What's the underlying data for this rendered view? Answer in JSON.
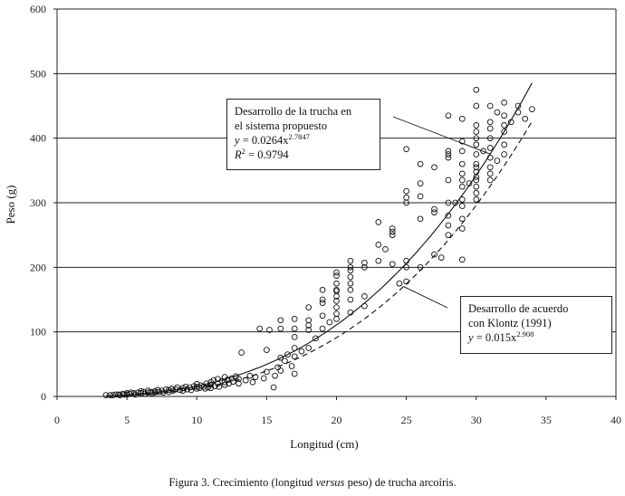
{
  "chart_data": {
    "type": "scatter",
    "xlabel": "Longitud (cm)",
    "ylabel": "Peso (g)",
    "xlim": [
      0,
      40
    ],
    "ylim": [
      0,
      600
    ],
    "xticks": [
      0,
      5,
      10,
      15,
      20,
      25,
      30,
      35,
      40
    ],
    "yticks": [
      0,
      100,
      200,
      300,
      400,
      500,
      600
    ],
    "grid": "horizontal",
    "curves": [
      {
        "id": "fit",
        "style": "solid",
        "a": 0.0264,
        "b": 2.7847,
        "x_range": [
          3.5,
          34
        ],
        "label": [
          "Desarrollo de la trucha en",
          "el sistema propuesto"
        ],
        "equation_y": "y",
        "equation_eq": " = 0.0264x",
        "equation_exp": "2.7847",
        "r2_lhs": "R",
        "r2_exp": "2",
        "r2_rhs": " = 0.9794"
      },
      {
        "id": "klontz",
        "style": "dashed",
        "a": 0.015,
        "b": 2.908,
        "x_range": [
          5,
          34
        ],
        "label": [
          "Desarrollo de acuerdo",
          "con Klontz (1991)"
        ],
        "equation_y": "y",
        "equation_eq": " = 0.015x",
        "equation_exp": "2.908"
      }
    ],
    "points": [
      [
        3.5,
        2
      ],
      [
        3.8,
        2
      ],
      [
        4,
        2
      ],
      [
        4.2,
        3
      ],
      [
        4.4,
        3
      ],
      [
        4.5,
        2
      ],
      [
        4.7,
        4
      ],
      [
        4.8,
        3
      ],
      [
        5,
        3
      ],
      [
        5,
        5
      ],
      [
        5.2,
        4
      ],
      [
        5.3,
        6
      ],
      [
        5.5,
        5
      ],
      [
        5.6,
        3
      ],
      [
        5.8,
        6
      ],
      [
        6,
        5
      ],
      [
        6,
        8
      ],
      [
        6.2,
        7
      ],
      [
        6.3,
        4
      ],
      [
        6.5,
        6
      ],
      [
        6.5,
        9
      ],
      [
        6.7,
        7
      ],
      [
        6.8,
        5
      ],
      [
        7,
        8
      ],
      [
        7,
        6
      ],
      [
        7.2,
        10
      ],
      [
        7.3,
        7
      ],
      [
        7.5,
        9
      ],
      [
        7.6,
        6
      ],
      [
        7.8,
        11
      ],
      [
        8,
        10
      ],
      [
        8,
        7
      ],
      [
        8.2,
        12
      ],
      [
        8.3,
        9
      ],
      [
        8.5,
        11
      ],
      [
        8.6,
        14
      ],
      [
        8.8,
        10
      ],
      [
        9,
        13
      ],
      [
        9,
        9
      ],
      [
        9.2,
        15
      ],
      [
        9.3,
        11
      ],
      [
        9.5,
        14
      ],
      [
        9.6,
        10
      ],
      [
        9.8,
        16
      ],
      [
        10,
        15
      ],
      [
        10,
        12
      ],
      [
        10,
        19
      ],
      [
        10.2,
        13
      ],
      [
        10.3,
        17
      ],
      [
        10.5,
        15
      ],
      [
        10.6,
        12
      ],
      [
        10.7,
        20
      ],
      [
        10.8,
        14
      ],
      [
        11,
        18
      ],
      [
        11,
        22
      ],
      [
        11,
        13
      ],
      [
        11.2,
        25
      ],
      [
        11.3,
        16
      ],
      [
        11.5,
        20
      ],
      [
        11.5,
        27
      ],
      [
        11.6,
        15
      ],
      [
        11.8,
        24
      ],
      [
        12,
        22
      ],
      [
        12,
        30
      ],
      [
        12,
        18
      ],
      [
        12.2,
        26
      ],
      [
        12.3,
        20
      ],
      [
        12.5,
        28
      ],
      [
        12.6,
        23
      ],
      [
        12.8,
        31
      ],
      [
        13,
        20
      ],
      [
        13,
        27
      ],
      [
        13.2,
        68
      ],
      [
        13.5,
        25
      ],
      [
        13.8,
        32
      ],
      [
        14,
        22
      ],
      [
        14.2,
        30
      ],
      [
        14.5,
        105
      ],
      [
        14.8,
        28
      ],
      [
        15,
        72
      ],
      [
        15,
        38
      ],
      [
        15.2,
        103
      ],
      [
        15.5,
        14
      ],
      [
        15.6,
        32
      ],
      [
        15.8,
        45
      ],
      [
        16,
        40
      ],
      [
        16,
        60
      ],
      [
        16,
        105
      ],
      [
        16,
        118
      ],
      [
        16.3,
        55
      ],
      [
        16.5,
        65
      ],
      [
        16.8,
        47
      ],
      [
        17,
        35
      ],
      [
        17,
        62
      ],
      [
        17,
        75
      ],
      [
        17,
        92
      ],
      [
        17,
        105
      ],
      [
        17,
        120
      ],
      [
        17.5,
        70
      ],
      [
        18,
        75
      ],
      [
        18,
        103
      ],
      [
        18,
        110
      ],
      [
        18,
        118
      ],
      [
        18,
        138
      ],
      [
        18.5,
        90
      ],
      [
        19,
        105
      ],
      [
        19,
        125
      ],
      [
        19,
        145
      ],
      [
        19,
        150
      ],
      [
        19,
        165
      ],
      [
        19.5,
        115
      ],
      [
        20,
        120
      ],
      [
        20,
        128
      ],
      [
        20,
        138
      ],
      [
        20,
        148
      ],
      [
        20,
        155
      ],
      [
        20,
        163
      ],
      [
        20,
        175
      ],
      [
        20,
        187
      ],
      [
        20,
        192
      ],
      [
        20,
        165
      ],
      [
        21,
        130
      ],
      [
        21,
        150
      ],
      [
        21,
        165
      ],
      [
        21,
        175
      ],
      [
        21,
        185
      ],
      [
        21,
        195
      ],
      [
        21,
        200
      ],
      [
        21,
        210
      ],
      [
        22,
        155
      ],
      [
        22,
        140
      ],
      [
        22,
        200
      ],
      [
        22,
        207
      ],
      [
        23,
        210
      ],
      [
        23,
        235
      ],
      [
        23,
        270
      ],
      [
        23.5,
        228
      ],
      [
        24,
        205
      ],
      [
        24,
        250
      ],
      [
        24,
        255
      ],
      [
        24,
        260
      ],
      [
        24.5,
        175
      ],
      [
        25,
        178
      ],
      [
        25,
        200
      ],
      [
        25,
        210
      ],
      [
        25,
        300
      ],
      [
        25,
        308
      ],
      [
        25,
        318
      ],
      [
        25,
        383
      ],
      [
        26,
        200
      ],
      [
        26,
        275
      ],
      [
        26,
        310
      ],
      [
        26,
        330
      ],
      [
        26,
        360
      ],
      [
        27,
        220
      ],
      [
        27,
        285
      ],
      [
        27,
        290
      ],
      [
        27,
        355
      ],
      [
        27.5,
        215
      ],
      [
        28,
        250
      ],
      [
        28,
        265
      ],
      [
        28,
        280
      ],
      [
        28,
        300
      ],
      [
        28,
        335
      ],
      [
        28,
        370
      ],
      [
        28,
        375
      ],
      [
        28,
        380
      ],
      [
        28,
        435
      ],
      [
        28.5,
        300
      ],
      [
        29,
        212
      ],
      [
        29,
        260
      ],
      [
        29,
        275
      ],
      [
        29,
        295
      ],
      [
        29,
        305
      ],
      [
        29,
        325
      ],
      [
        29,
        335
      ],
      [
        29,
        345
      ],
      [
        29,
        360
      ],
      [
        29,
        380
      ],
      [
        29,
        395
      ],
      [
        29,
        430
      ],
      [
        29.5,
        330
      ],
      [
        30,
        305
      ],
      [
        30,
        315
      ],
      [
        30,
        325
      ],
      [
        30,
        335
      ],
      [
        30,
        340
      ],
      [
        30,
        348
      ],
      [
        30,
        355
      ],
      [
        30,
        360
      ],
      [
        30,
        375
      ],
      [
        30,
        390
      ],
      [
        30,
        400
      ],
      [
        30,
        410
      ],
      [
        30,
        420
      ],
      [
        30,
        450
      ],
      [
        30,
        475
      ],
      [
        30.5,
        380
      ],
      [
        31,
        335
      ],
      [
        31,
        345
      ],
      [
        31,
        355
      ],
      [
        31,
        370
      ],
      [
        31,
        385
      ],
      [
        31,
        400
      ],
      [
        31,
        415
      ],
      [
        31,
        425
      ],
      [
        31,
        450
      ],
      [
        31.5,
        365
      ],
      [
        31.5,
        440
      ],
      [
        32,
        375
      ],
      [
        32,
        390
      ],
      [
        32,
        410
      ],
      [
        32,
        420
      ],
      [
        32,
        435
      ],
      [
        32,
        455
      ],
      [
        32.5,
        425
      ],
      [
        33,
        440
      ],
      [
        33,
        450
      ],
      [
        33.5,
        430
      ],
      [
        34,
        445
      ]
    ]
  },
  "caption": {
    "prefix": "Figura 3. Crecimiento (longitud ",
    "italic": "versus",
    "suffix": " peso) de trucha arcoíris."
  }
}
